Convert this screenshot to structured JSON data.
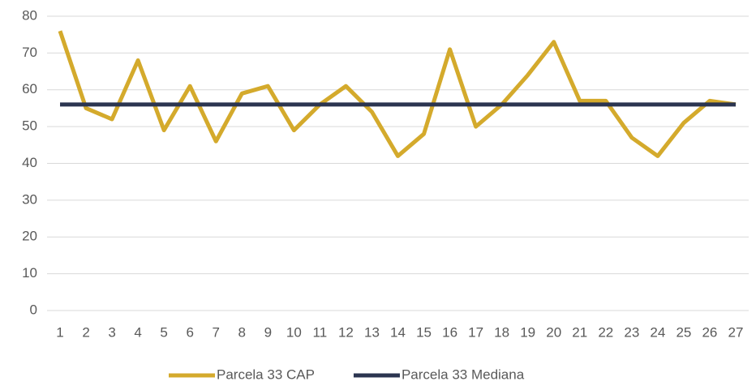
{
  "chart_data": {
    "type": "line",
    "categories": [
      "1",
      "2",
      "3",
      "4",
      "5",
      "6",
      "7",
      "8",
      "9",
      "10",
      "11",
      "12",
      "13",
      "14",
      "15",
      "16",
      "17",
      "18",
      "19",
      "20",
      "21",
      "22",
      "23",
      "24",
      "25",
      "26",
      "27"
    ],
    "series": [
      {
        "name": "Parcela 33 CAP",
        "color": "#d4aa2c",
        "values": [
          76,
          55,
          52,
          68,
          49,
          61,
          46,
          59,
          61,
          49,
          56,
          61,
          54,
          42,
          48,
          71,
          50,
          56,
          64,
          73,
          57,
          57,
          47,
          42,
          51,
          57,
          56
        ]
      },
      {
        "name": "Parcela 33 Mediana",
        "color": "#2b3550",
        "values": [
          56,
          56,
          56,
          56,
          56,
          56,
          56,
          56,
          56,
          56,
          56,
          56,
          56,
          56,
          56,
          56,
          56,
          56,
          56,
          56,
          56,
          56,
          56,
          56,
          56,
          56,
          56
        ]
      }
    ],
    "ylim": [
      0,
      80
    ],
    "yticks": [
      0,
      10,
      20,
      30,
      40,
      50,
      60,
      70,
      80
    ],
    "grid": true,
    "legend": "bottom"
  }
}
